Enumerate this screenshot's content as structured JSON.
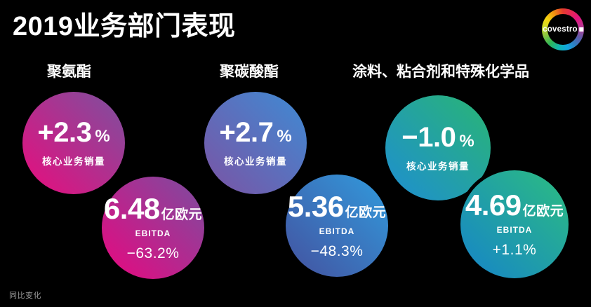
{
  "title": "2019业务部门表现",
  "logo": {
    "text": "covestro"
  },
  "footnote": "同比变化",
  "segments": [
    {
      "name": "聚氨酯",
      "volume_value": "+2.3",
      "volume_pct_sign": "%",
      "volume_label": "核心业务销量",
      "ebitda_value": "6.48",
      "ebitda_unit": "亿欧元",
      "ebitda_label": "EBITDA",
      "ebitda_change": "−63.2%",
      "volume_gradient": {
        "from": "#e90c7d",
        "to": "#7b519f"
      },
      "ebitda_gradient": {
        "from": "#e9077f",
        "to": "#7a4da0"
      }
    },
    {
      "name": "聚碳酸酯",
      "volume_value": "+2.7",
      "volume_pct_sign": "%",
      "volume_label": "核心业务销量",
      "ebitda_value": "5.36",
      "ebitda_unit": "亿欧元",
      "ebitda_label": "EBITDA",
      "ebitda_change": "−48.3%",
      "volume_gradient": {
        "from": "#7b53a4",
        "to": "#3e8bd4"
      },
      "ebitda_gradient": {
        "from": "#44519f",
        "to": "#319bdd"
      }
    },
    {
      "name": "涂料、粘合剂和特殊化学品",
      "volume_value": "−1.0",
      "volume_pct_sign": "%",
      "volume_label": "核心业务销量",
      "ebitda_value": "4.69",
      "ebitda_unit": "亿欧元",
      "ebitda_label": "EBITDA",
      "ebitda_change": "+1.1%",
      "volume_gradient": {
        "from": "#1e8ed2",
        "to": "#29b574"
      },
      "ebitda_gradient": {
        "from": "#1684c9",
        "to": "#2cbd80"
      }
    }
  ],
  "chart_data": {
    "type": "table",
    "title": "2019业务部门表现",
    "categories": [
      "聚氨酯",
      "聚碳酸酯",
      "涂料、粘合剂和特殊化学品"
    ],
    "series": [
      {
        "name": "核心业务销量同比变化 (%)",
        "values": [
          2.3,
          2.7,
          -1.0
        ]
      },
      {
        "name": "EBITDA (亿欧元)",
        "values": [
          6.48,
          5.36,
          4.69
        ]
      },
      {
        "name": "EBITDA同比变化 (%)",
        "values": [
          -63.2,
          -48.3,
          1.1
        ]
      }
    ],
    "footnote": "同比变化",
    "legend_position": "none",
    "grid": false
  }
}
